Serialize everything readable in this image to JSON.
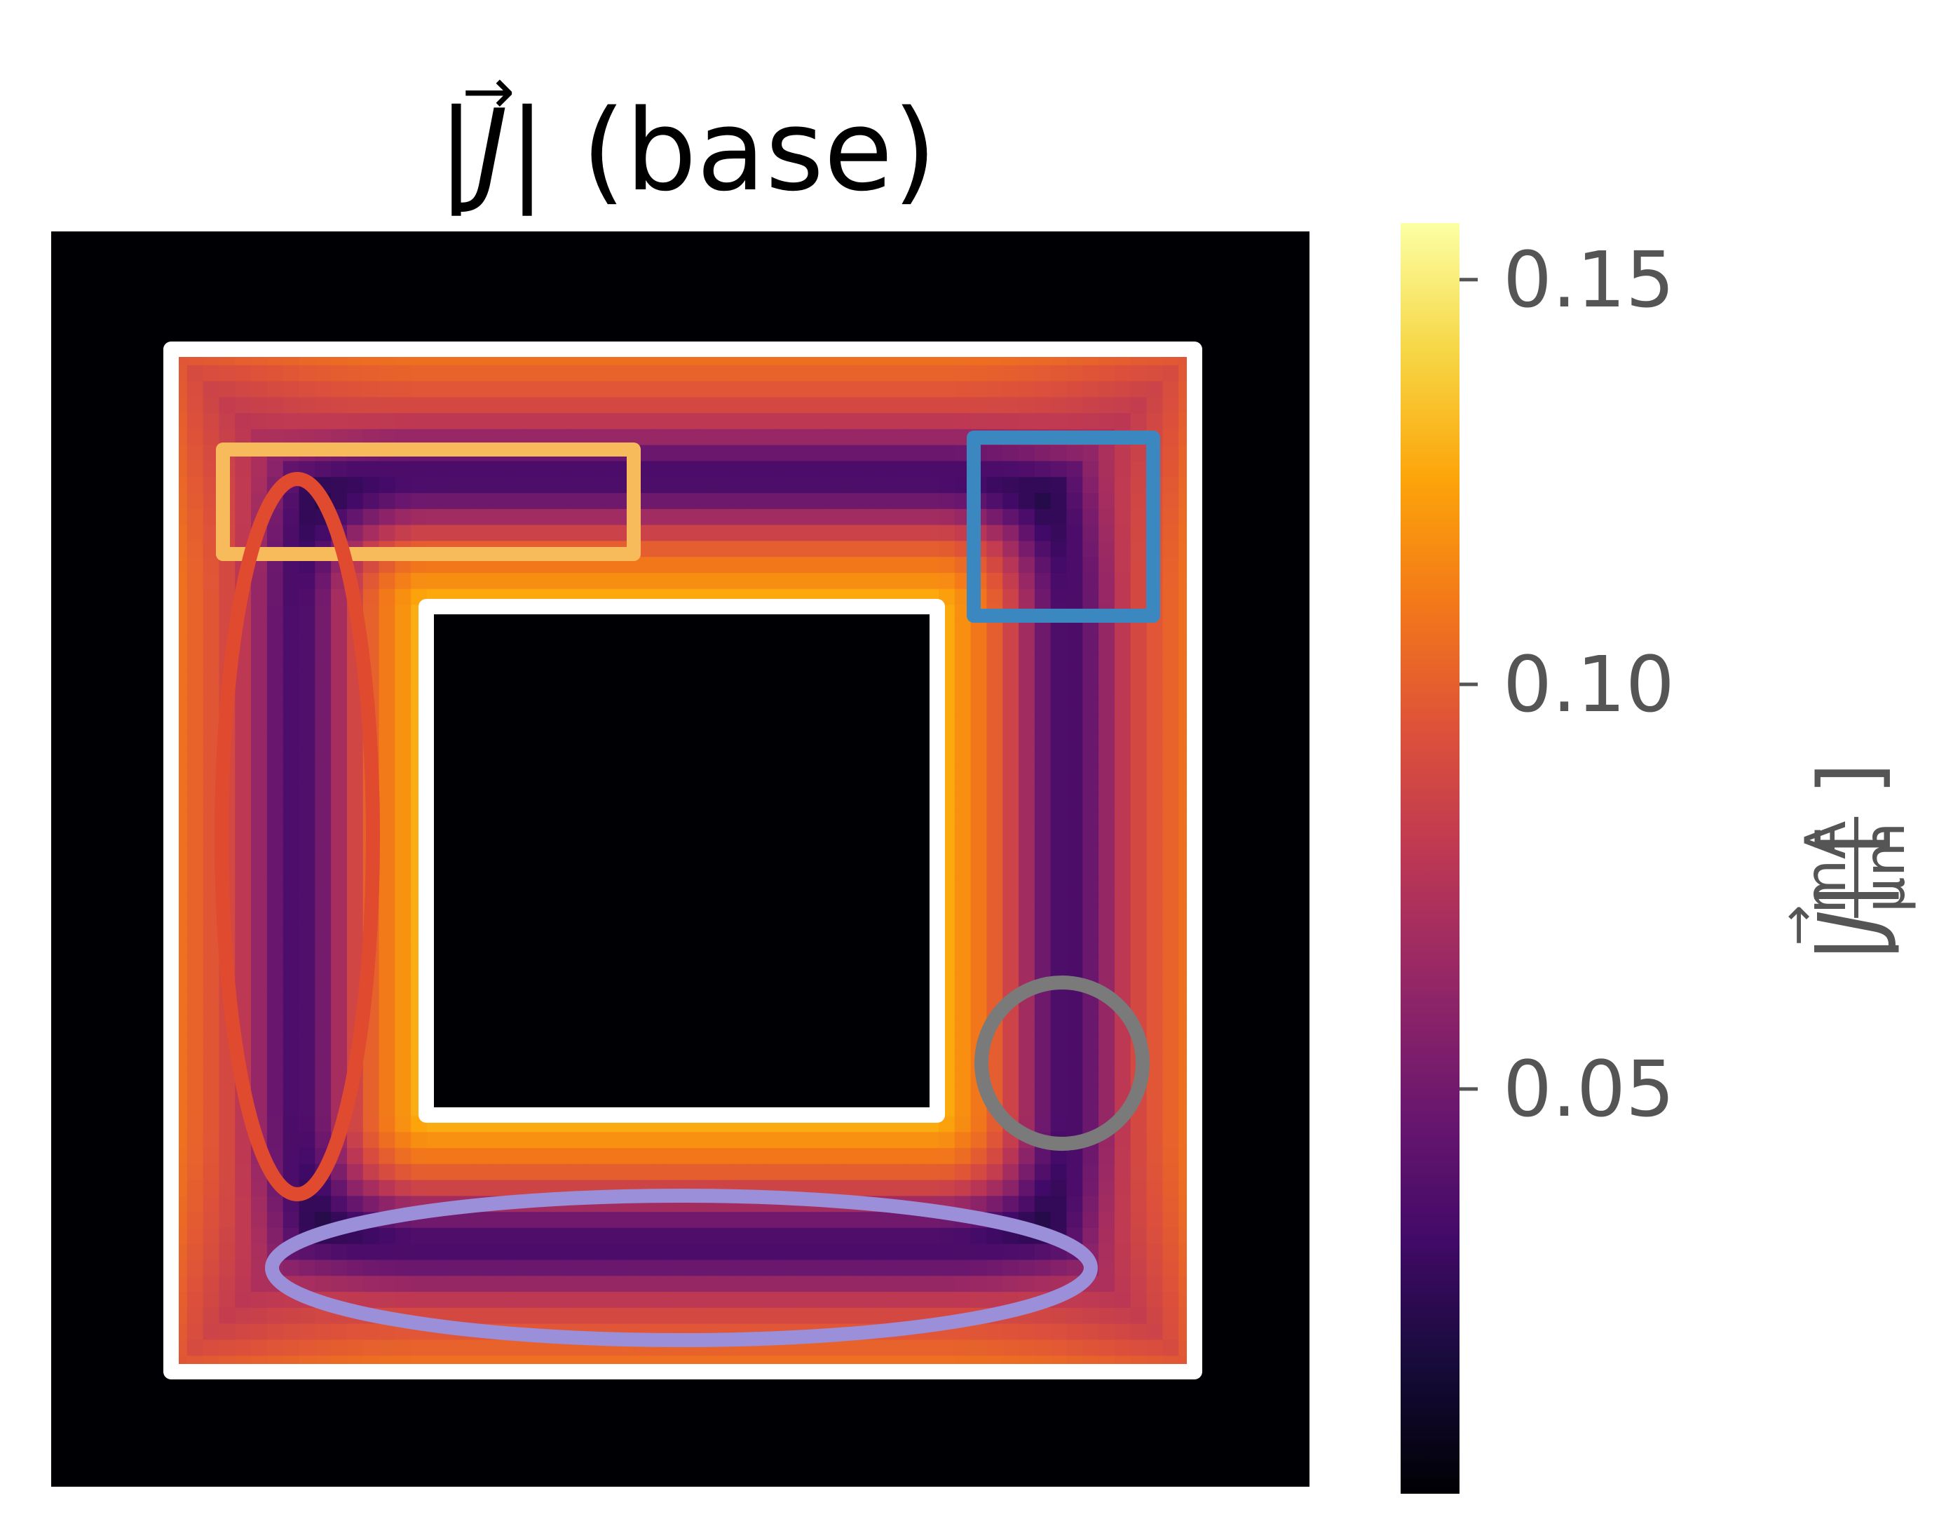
{
  "chart_data": {
    "type": "heatmap",
    "title": {
      "prefix": "|",
      "symbol": "J",
      "arrow": "→",
      "suffix": "| (base)"
    },
    "colormap": "inferno",
    "colorbar": {
      "label": {
        "prefix": "|",
        "symbol": "J",
        "arrow": "→",
        "middle": "| [",
        "numerator": "mA",
        "denominator": "µm",
        "suffix": "]"
      },
      "ticks": [
        {
          "value": 0.05,
          "label": "0.05"
        },
        {
          "value": 0.1,
          "label": "0.10"
        },
        {
          "value": 0.15,
          "label": "0.15"
        }
      ],
      "range": [
        0.0,
        0.157
      ]
    },
    "field": {
      "description_values": {
        "outside": 0.0,
        "hole": 0.0,
        "outer_edge_peak": 0.09,
        "inner_edge_peak": 0.13,
        "quiet_band": 0.005
      }
    },
    "overlays": [
      {
        "name": "outer-boundary",
        "shape": "rectangle",
        "color": "#ffffff"
      },
      {
        "name": "inner-hole-boundary",
        "shape": "rectangle",
        "color": "#ffffff"
      },
      {
        "name": "top-left-region",
        "shape": "rectangle",
        "color": "#f8bb5b"
      },
      {
        "name": "top-right-region",
        "shape": "rectangle",
        "color": "#3b87bf"
      },
      {
        "name": "left-region",
        "shape": "ellipse",
        "color": "#e04a2f"
      },
      {
        "name": "bottom-region",
        "shape": "ellipse",
        "color": "#9a8fd8"
      },
      {
        "name": "right-region",
        "shape": "circle",
        "color": "#7a7a7a"
      }
    ],
    "tick_color": "#555555",
    "title_color": "#000000"
  }
}
